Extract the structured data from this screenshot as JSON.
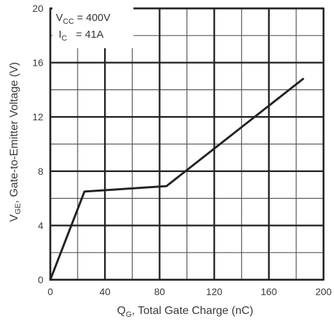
{
  "chart_data": {
    "type": "line",
    "title": "",
    "xlabel": {
      "main": "Q",
      "sub": "G",
      "rest": ", Total Gate Charge (nC)"
    },
    "ylabel": {
      "main": "V",
      "sub": "GE",
      "rest": ", Gate-to-Emitter Voltage (V)"
    },
    "xlim": [
      0,
      200
    ],
    "ylim": [
      0,
      20
    ],
    "x_ticks": [
      0,
      40,
      80,
      120,
      160,
      200
    ],
    "y_ticks": [
      0,
      4,
      8,
      12,
      16,
      20
    ],
    "x_tick_labels": [
      "0",
      "40",
      "80",
      "120",
      "160",
      "200"
    ],
    "y_tick_labels": [
      "0",
      "4",
      "8",
      "12",
      "16",
      "20"
    ],
    "x_minor_step": 20,
    "y_minor_step": 2,
    "grid": true,
    "annotations": [
      {
        "main": "V",
        "sub": "CC",
        "rest": " = 400V"
      },
      {
        "main": "I",
        "sub": "C",
        "rest": "   = 41A"
      }
    ],
    "series": [
      {
        "x": [
          0,
          25,
          85,
          185
        ],
        "y": [
          0,
          6.5,
          6.9,
          14.8
        ]
      }
    ],
    "colors": {
      "line": "#222222",
      "grid_major": "#222222",
      "grid_minor": "#555555",
      "text": "#3a3a3a"
    }
  }
}
